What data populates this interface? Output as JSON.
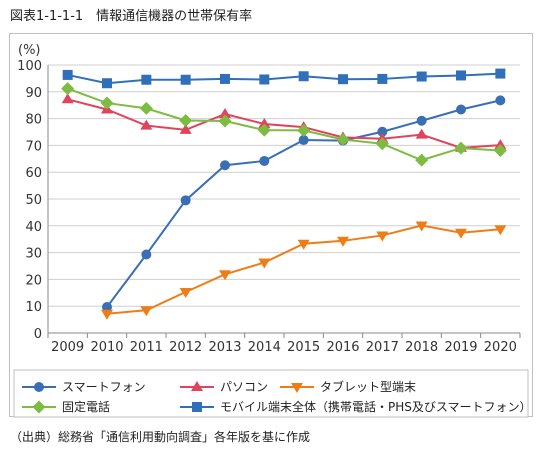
{
  "title": "図表1-1-1-1　情報通信機器の世帯保有率",
  "source": "（出典）総務省「通信利用動向調査」各年版を基に作成",
  "chart_data": {
    "type": "line",
    "unit_label": "(%)",
    "categories": [
      "2009",
      "2010",
      "2011",
      "2012",
      "2013",
      "2014",
      "2015",
      "2016",
      "2017",
      "2018",
      "2019",
      "2020"
    ],
    "ylim": [
      0,
      100
    ],
    "yticks": [
      0,
      10,
      20,
      30,
      40,
      50,
      60,
      70,
      80,
      90,
      100
    ],
    "grid": true,
    "legend_position": "bottom",
    "series": [
      {
        "name": "スマートフォン",
        "color": "#3a6fb5",
        "marker": "circle",
        "values": [
          null,
          9.7,
          29.3,
          49.5,
          62.6,
          64.2,
          72.0,
          71.8,
          75.1,
          79.2,
          83.4,
          86.8
        ]
      },
      {
        "name": "パソコン",
        "color": "#e0435c",
        "marker": "triangle-up",
        "values": [
          87.2,
          83.4,
          77.4,
          75.8,
          81.7,
          78.0,
          76.8,
          73.0,
          72.5,
          74.0,
          69.1,
          70.1
        ]
      },
      {
        "name": "タブレット型端末",
        "color": "#ee7d17",
        "marker": "triangle-down",
        "values": [
          null,
          7.2,
          8.5,
          15.3,
          21.9,
          26.3,
          33.3,
          34.4,
          36.4,
          40.1,
          37.4,
          38.7
        ]
      },
      {
        "name": "固定電話",
        "color": "#7dbb42",
        "marker": "diamond",
        "values": [
          91.2,
          85.8,
          83.8,
          79.3,
          79.1,
          75.7,
          75.6,
          72.2,
          70.6,
          64.5,
          69.0,
          68.1
        ]
      },
      {
        "name": "モバイル端末全体（携帯電話・PHS及びスマートフォン）",
        "color": "#2f70b9",
        "marker": "square",
        "values": [
          96.3,
          93.2,
          94.5,
          94.5,
          94.8,
          94.6,
          95.8,
          94.7,
          94.8,
          95.7,
          96.1,
          96.8
        ]
      }
    ]
  }
}
